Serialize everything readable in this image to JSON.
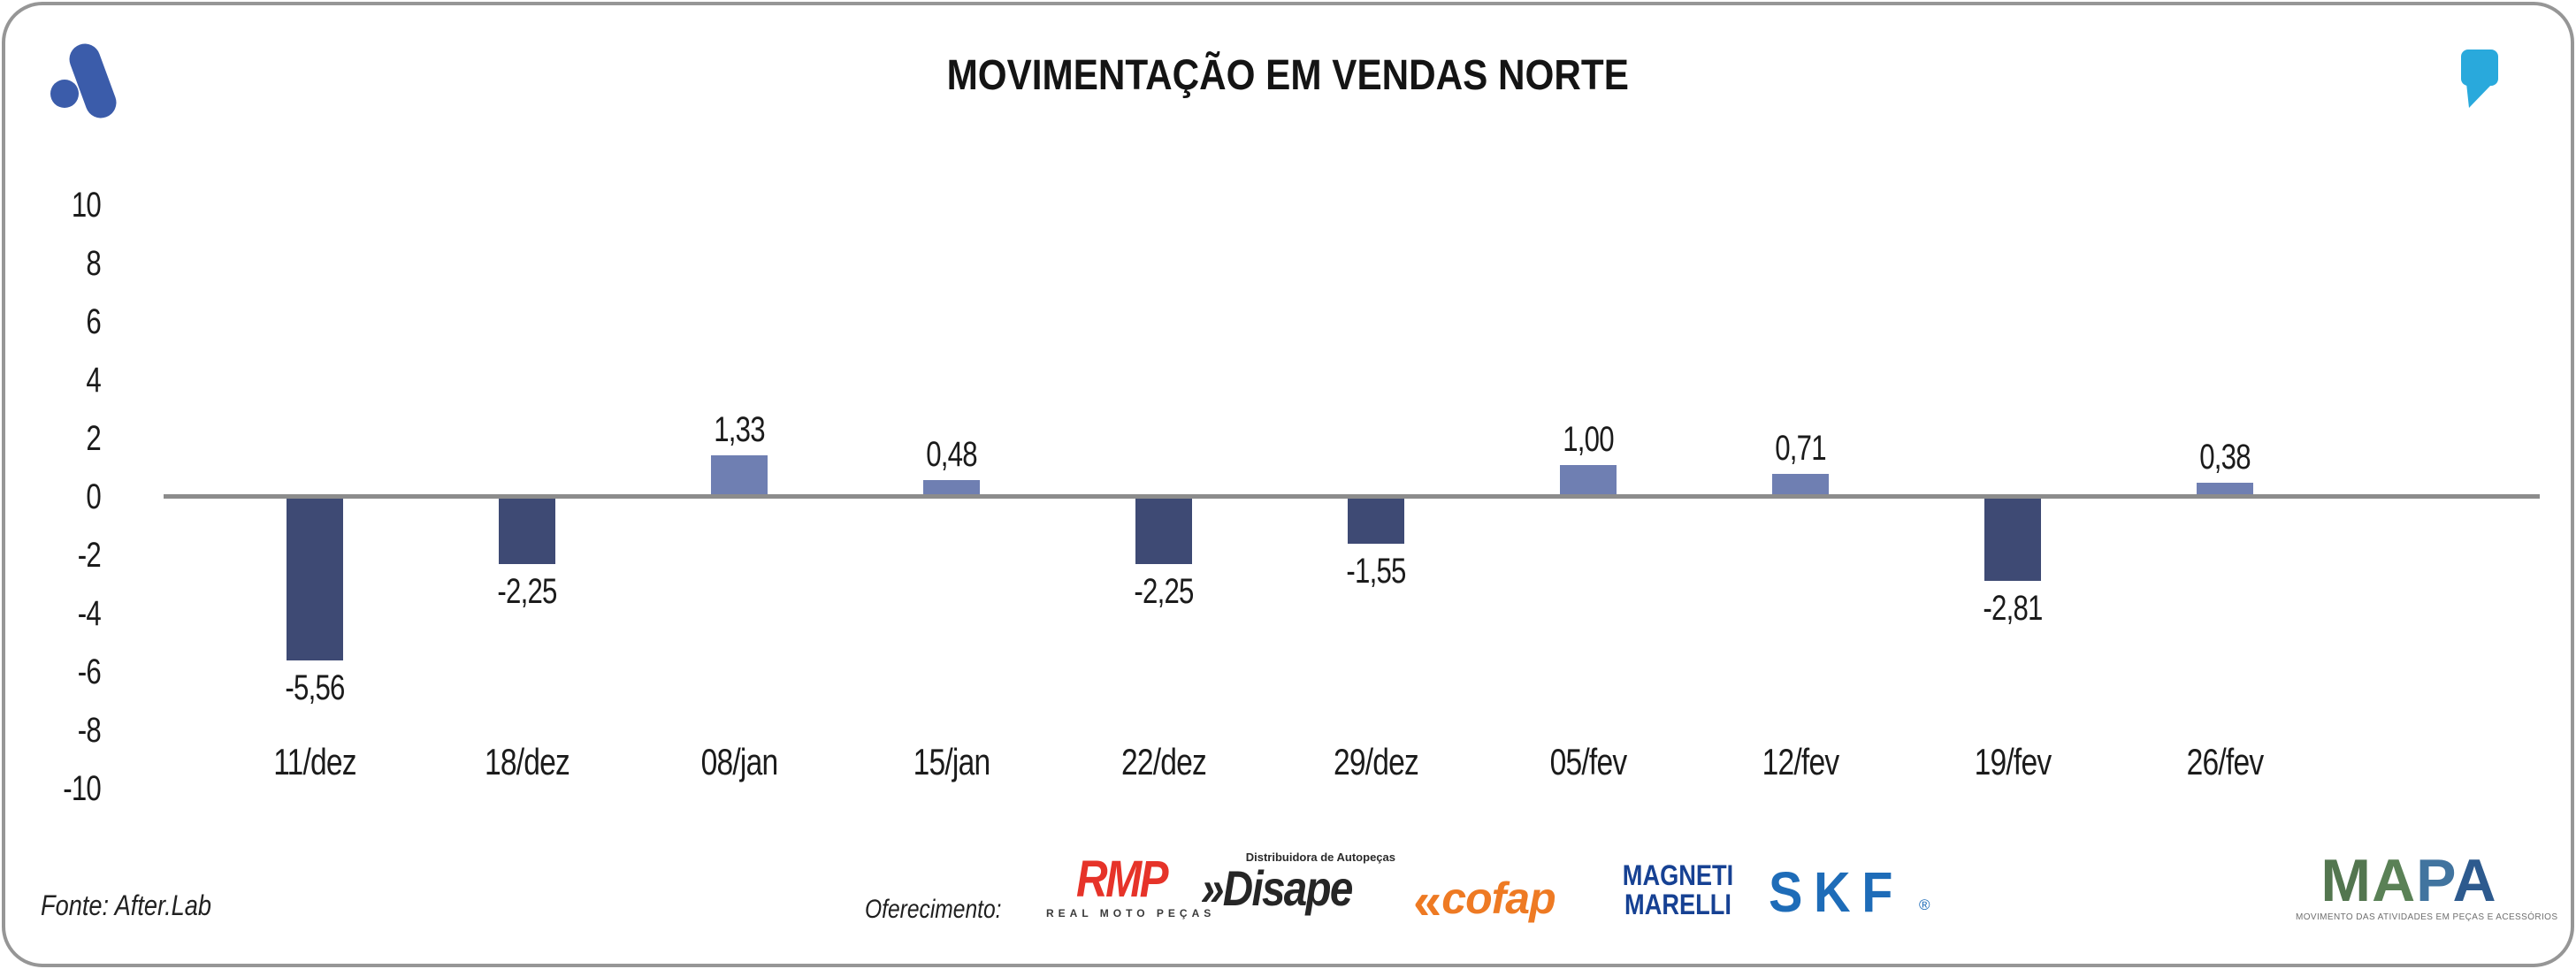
{
  "header": {
    "title": "MOVIMENTAÇÃO EM VENDAS NORTE"
  },
  "branding": {
    "publisher_logo": "afterlab-logo",
    "publisher_logo_color": "#3B5CAA",
    "quote_icon": "quote-mark-icon",
    "quote_icon_color": "#29A9DC"
  },
  "chart_data": {
    "type": "bar",
    "title": "MOVIMENTAÇÃO EM VENDAS NORTE",
    "categories": [
      "11/dez",
      "18/dez",
      "08/jan",
      "15/jan",
      "22/dez",
      "29/dez",
      "05/fev",
      "12/fev",
      "19/fev",
      "26/fev"
    ],
    "values": [
      -5.56,
      -2.25,
      1.33,
      0.48,
      -2.25,
      -1.55,
      1.0,
      0.71,
      -2.81,
      0.38
    ],
    "value_labels": [
      "-5,56",
      "-2,25",
      "1,33",
      "0,48",
      "-2,25",
      "-1,55",
      "1,00",
      "0,71",
      "-2,81",
      "0,38"
    ],
    "xlabel": "",
    "ylabel": "",
    "ylim": [
      -10,
      10
    ],
    "yticks": [
      10,
      8,
      6,
      4,
      2,
      0,
      -2,
      -4,
      -6,
      -8,
      -10
    ],
    "grid": false,
    "legend": false,
    "bar_color_positive": "#6F7FB2",
    "bar_color_negative": "#3E4A74",
    "axis_color": "#8C8C8C"
  },
  "footer": {
    "source": "Fonte: After.Lab",
    "sponsors_label": "Oferecimento:",
    "sponsors": {
      "rmp": {
        "name": "RMP",
        "subtitle": "REAL MOTO PEÇAS",
        "color": "#E63329"
      },
      "disape": {
        "prefix": "»",
        "name": "Disape",
        "subtitle": "Distribuidora de Autopeças",
        "color": "#262626"
      },
      "cofap": {
        "prefix": "«",
        "name": "cofap",
        "color": "#EE7A23"
      },
      "magneti": {
        "line1": "MAGNETI",
        "line2": "MARELLI",
        "color": "#164193"
      },
      "skf": {
        "name": "SKF",
        "registered": "®",
        "color": "#1E6CB8"
      }
    },
    "mapa": {
      "letters": [
        {
          "ch": "M",
          "color": "#53764F"
        },
        {
          "ch": "A",
          "color": "#5A8156"
        },
        {
          "ch": "P",
          "color": "#41749F"
        },
        {
          "ch": "A",
          "color": "#2D5A8E"
        }
      ],
      "subtitle": "MOVIMENTO DAS ATIVIDADES EM PEÇAS E ACESSÓRIOS"
    }
  }
}
